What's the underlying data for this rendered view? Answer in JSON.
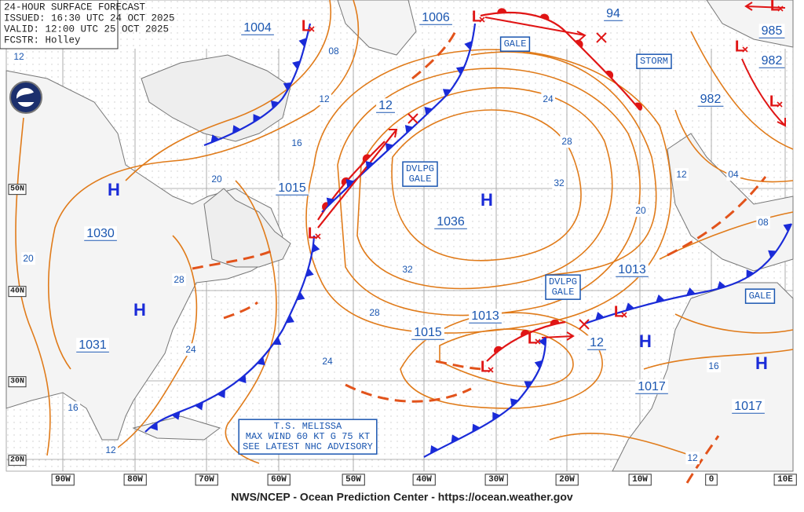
{
  "header": {
    "lines": [
      "24-HOUR SURFACE FORECAST",
      "ISSUED: 16:30 UTC 24 OCT 2025",
      "VALID:  12:00 UTC 25 OCT 2025",
      "FCSTR:  Holley"
    ]
  },
  "footer": "NWS/NCEP - Ocean Prediction Center - https://ocean.weather.gov",
  "longitudes": [
    "90W",
    "80W",
    "70W",
    "60W",
    "50W",
    "40W",
    "30W",
    "20W",
    "10W",
    "0",
    "10E"
  ],
  "latitudes": [
    "50N",
    "40N",
    "30N",
    "20N"
  ],
  "pressure_labels": [
    "1004",
    "1006",
    "94",
    "985",
    "982",
    "982",
    "12",
    "1015",
    "1030",
    "1031",
    "1036",
    "1015",
    "1013",
    "1013",
    "12",
    "1017",
    "1017"
  ],
  "isobar_labels": [
    "08",
    "12",
    "16",
    "20",
    "28",
    "24",
    "16",
    "12",
    "20",
    "12",
    "24",
    "28",
    "32",
    "32",
    "28",
    "24",
    "20",
    "12",
    "04",
    "08",
    "16",
    "12"
  ],
  "highs": [
    "H",
    "H",
    "H",
    "H",
    "H"
  ],
  "lows": [
    "L",
    "L",
    "L",
    "L",
    "L",
    "L",
    "L",
    "L",
    "L"
  ],
  "warnings": [
    {
      "lines": [
        "GALE"
      ]
    },
    {
      "lines": [
        "STORM"
      ]
    },
    {
      "lines": [
        "DVLPG",
        "GALE"
      ]
    },
    {
      "lines": [
        "DVLPG",
        "GALE"
      ]
    },
    {
      "lines": [
        "GALE"
      ]
    }
  ],
  "storm_note": {
    "lines": [
      "T.S. MELISSA",
      "MAX WIND 60 KT G 75 KT",
      "SEE LATEST NHC ADVISORY"
    ]
  }
}
